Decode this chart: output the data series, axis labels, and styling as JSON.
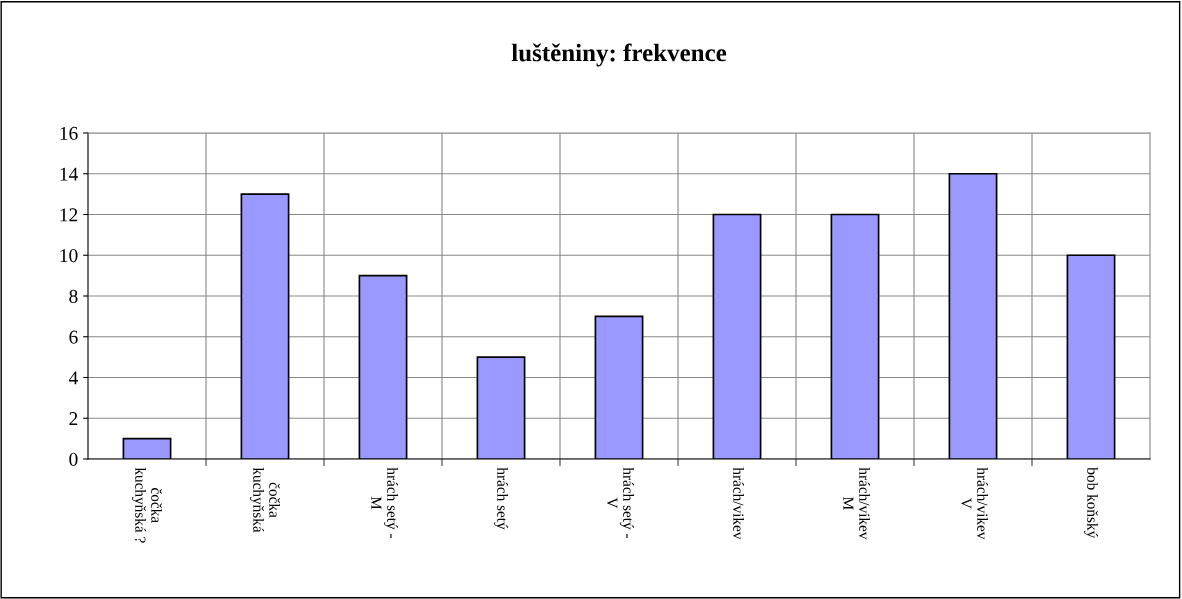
{
  "chart_data": {
    "type": "bar",
    "title": "luštěniny: frekvence",
    "categories": [
      "čočka\nkuchyňská ?",
      "čočka\nkuchyňská",
      "hrách setý -\nM",
      "hrách setý",
      "hrách setý -\nV",
      "hrách/vikev",
      "hrách/vikev\nM",
      "hrách/vikev\nV",
      "bob koňský"
    ],
    "values": [
      1,
      13,
      9,
      5,
      7,
      12,
      12,
      14,
      10
    ],
    "color": "#9999ff",
    "ylim": [
      0,
      16
    ],
    "yticks": [
      0,
      2,
      4,
      6,
      8,
      10,
      12,
      14,
      16
    ],
    "grid": true
  }
}
